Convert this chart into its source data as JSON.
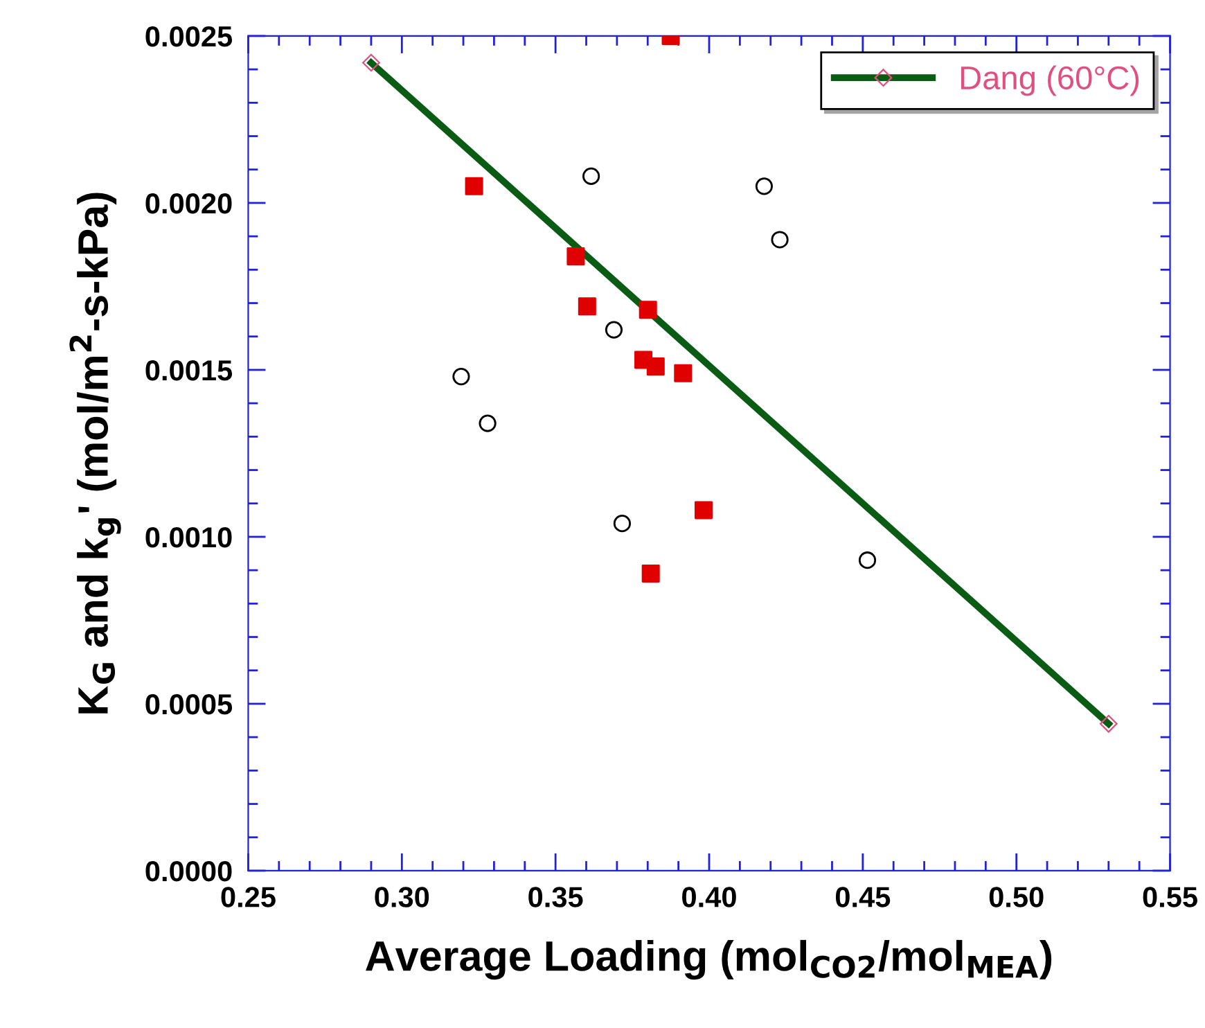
{
  "chart_data": {
    "type": "scatter",
    "xlabel": "Average Loading (mol$_{CO2}$/mol$_{MEA}$)",
    "ylabel": "K$_{G}$ and k$_{g}$' (mol/m$^{2}$-s-kPa)",
    "xlim": [
      0.25,
      0.55
    ],
    "ylim": [
      0,
      0.0025
    ],
    "xticks": [
      0.25,
      {
        "value": 0.3,
        "label": "0.30"
      },
      0.35,
      {
        "value": 0.4,
        "label": "0.40"
      },
      0.45,
      {
        "value": 0.5,
        "label": "0.50"
      },
      0.55
    ],
    "yticks": [
      {
        "value": 0,
        "label": "0.0000"
      },
      {
        "value": 0.0005,
        "label": "0.0005"
      },
      {
        "value": 0.001,
        "label": "0.0010"
      },
      {
        "value": 0.0015,
        "label": "0.0015"
      },
      {
        "value": 0.002,
        "label": "0.0020"
      },
      {
        "value": 0.0025,
        "label": "0.0025"
      }
    ],
    "grid": false,
    "legend": "top right",
    "series": [
      {
        "marker": "circle",
        "color": "#000000",
        "x": [
          0.3193,
          0.3279,
          0.3616,
          0.369,
          0.3717,
          0.4179,
          0.423,
          0.4515
        ],
        "values": [
          0.00148,
          0.00134,
          0.00208,
          0.00162,
          0.00104,
          0.00205,
          0.00189,
          0.00093
        ]
      },
      {
        "marker": "square",
        "color": "#e00000",
        "x": [
          0.3235,
          0.3566,
          0.3603,
          0.3801,
          0.3786,
          0.3826,
          0.3915,
          0.3982,
          0.381,
          0.3875
        ],
        "values": [
          0.00205,
          0.00184,
          0.00169,
          0.00168,
          0.00153,
          0.00151,
          0.00149,
          0.00108,
          0.00089,
          0.0025
        ]
      },
      {
        "type": "line",
        "name": "Dang (60°C)",
        "marker": "diamond",
        "color": "#0a5c14",
        "x": [
          0.29,
          0.53
        ],
        "values": [
          0.00242,
          0.00044
        ]
      }
    ]
  }
}
